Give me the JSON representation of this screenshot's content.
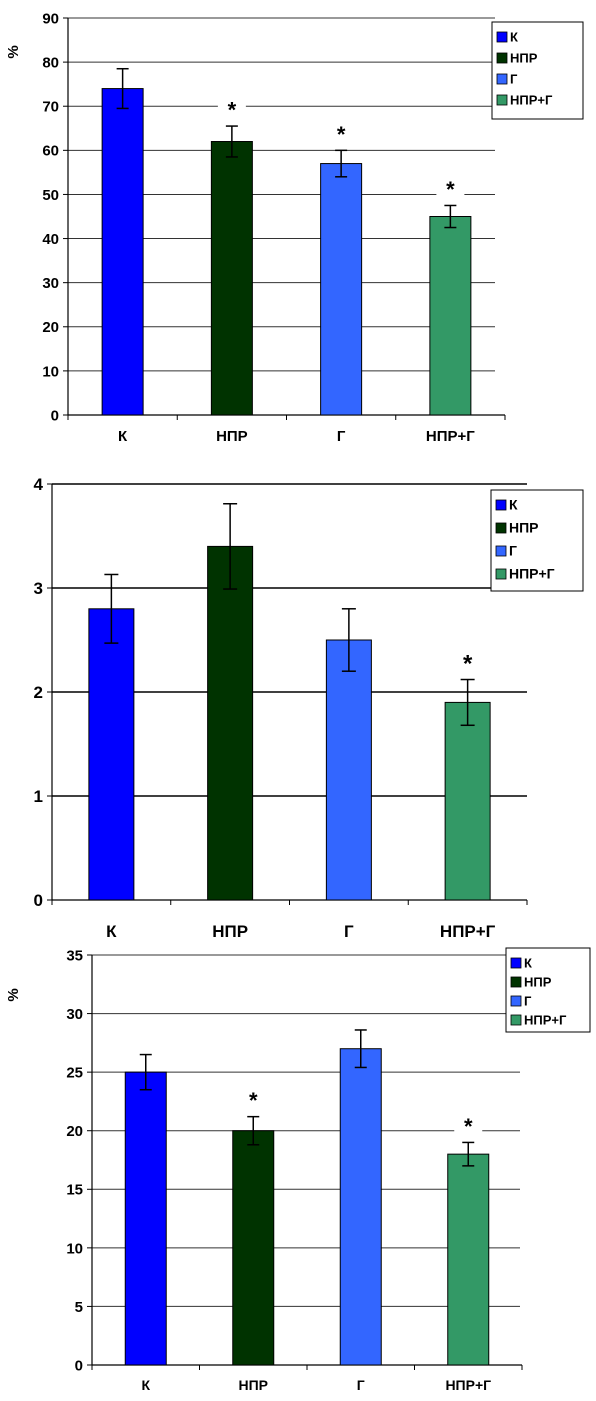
{
  "chart_data": [
    {
      "type": "bar",
      "ylabel": "%",
      "ylim": [
        0,
        90
      ],
      "yticks": [
        "0",
        "10",
        "20",
        "30",
        "40",
        "50",
        "60",
        "70",
        "80",
        "90"
      ],
      "grid": true,
      "legend": "top-right",
      "categories": [
        "К",
        "НПР",
        "Г",
        "НПР+Г"
      ],
      "values": [
        74,
        62,
        57,
        45
      ],
      "errors": [
        4.5,
        3.5,
        3,
        2.5
      ],
      "annotations": [
        "",
        "*",
        "*",
        "*"
      ],
      "colors": [
        "#0000ff",
        "#003300",
        "#3366ff",
        "#339966"
      ]
    },
    {
      "type": "bar",
      "ylabel": "",
      "ylim": [
        0,
        4
      ],
      "yticks": [
        "0",
        "1",
        "2",
        "3",
        "4"
      ],
      "grid": true,
      "legend": "top-right",
      "categories": [
        "К",
        "НПР",
        "Г",
        "НПР+Г"
      ],
      "values": [
        2.8,
        3.4,
        2.5,
        1.9
      ],
      "errors": [
        0.33,
        0.41,
        0.3,
        0.22
      ],
      "annotations": [
        "",
        "",
        "",
        "*"
      ],
      "colors": [
        "#0000ff",
        "#003300",
        "#3366ff",
        "#339966"
      ]
    },
    {
      "type": "bar",
      "ylabel": "%",
      "ylim": [
        0,
        35
      ],
      "yticks": [
        "0",
        "5",
        "10",
        "15",
        "20",
        "25",
        "30",
        "35"
      ],
      "grid": true,
      "legend": "top-right",
      "categories": [
        "К",
        "НПР",
        "Г",
        "НПР+Г"
      ],
      "values": [
        25,
        20,
        27,
        18
      ],
      "errors": [
        1.5,
        1.2,
        1.6,
        1.0
      ],
      "annotations": [
        "",
        "*",
        "",
        "*"
      ],
      "colors": [
        "#0000ff",
        "#003300",
        "#3366ff",
        "#339966"
      ]
    }
  ]
}
